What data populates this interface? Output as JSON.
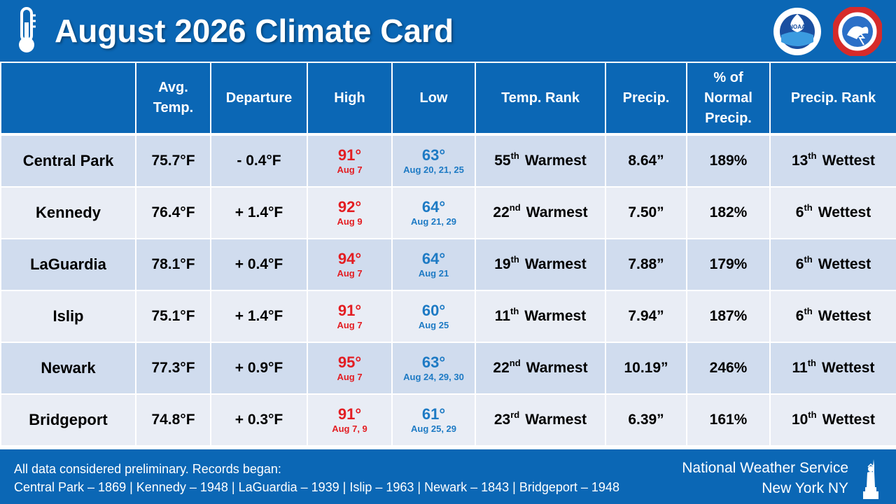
{
  "header": {
    "title": "August 2026 Climate Card",
    "logos": [
      "thermometer-icon",
      "noaa-logo",
      "nws-logo"
    ],
    "noaa_label": "NOAA",
    "nws_ring_text": "NATIONAL WEATHER SERVICE"
  },
  "table": {
    "columns": [
      "",
      "Avg. Temp.",
      "Departure",
      "High",
      "Low",
      "Temp. Rank",
      "Precip.",
      "% of Normal Precip.",
      "Precip. Rank"
    ],
    "rows": [
      {
        "station": "Central Park",
        "avg": "75.7°F",
        "dep": "- 0.4°F",
        "high": "91°",
        "high_date": "Aug 7",
        "low": "63°",
        "low_date": "Aug 20, 21, 25",
        "trank_num": "55",
        "trank_sup": "th",
        "trank_word": "Warmest",
        "precip": "8.64”",
        "pct": "189%",
        "prank_num": "13",
        "prank_sup": "th",
        "prank_word": "Wettest"
      },
      {
        "station": "Kennedy",
        "avg": "76.4°F",
        "dep": "+ 1.4°F",
        "high": "92°",
        "high_date": "Aug 9",
        "low": "64°",
        "low_date": "Aug 21, 29",
        "trank_num": "22",
        "trank_sup": "nd",
        "trank_word": "Warmest",
        "precip": "7.50”",
        "pct": "182%",
        "prank_num": "6",
        "prank_sup": "th",
        "prank_word": "Wettest"
      },
      {
        "station": "LaGuardia",
        "avg": "78.1°F",
        "dep": "+ 0.4°F",
        "high": "94°",
        "high_date": "Aug 7",
        "low": "64°",
        "low_date": "Aug 21",
        "trank_num": "19",
        "trank_sup": "th",
        "trank_word": "Warmest",
        "precip": "7.88”",
        "pct": "179%",
        "prank_num": "6",
        "prank_sup": "th",
        "prank_word": "Wettest"
      },
      {
        "station": "Islip",
        "avg": "75.1°F",
        "dep": "+ 1.4°F",
        "high": "91°",
        "high_date": "Aug 7",
        "low": "60°",
        "low_date": "Aug 25",
        "trank_num": "11",
        "trank_sup": "th",
        "trank_word": "Warmest",
        "precip": "7.94”",
        "pct": "187%",
        "prank_num": "6",
        "prank_sup": "th",
        "prank_word": "Wettest"
      },
      {
        "station": "Newark",
        "avg": "77.3°F",
        "dep": "+ 0.9°F",
        "high": "95°",
        "high_date": "Aug 7",
        "low": "63°",
        "low_date": "Aug 24, 29, 30",
        "trank_num": "22",
        "trank_sup": "nd",
        "trank_word": "Warmest",
        "precip": "10.19”",
        "pct": "246%",
        "prank_num": "11",
        "prank_sup": "th",
        "prank_word": "Wettest"
      },
      {
        "station": "Bridgeport",
        "avg": "74.8°F",
        "dep": "+ 0.3°F",
        "high": "91°",
        "high_date": "Aug 7, 9",
        "low": "61°",
        "low_date": "Aug 25, 29",
        "trank_num": "23",
        "trank_sup": "rd",
        "trank_word": "Warmest",
        "precip": "6.39”",
        "pct": "161%",
        "prank_num": "10",
        "prank_sup": "th",
        "prank_word": "Wettest"
      }
    ]
  },
  "footer": {
    "note_line1": "All data considered preliminary. Records began:",
    "note_line2": "Central Park – 1869  |  Kennedy – 1948  |  LaGuardia – 1939  |  Islip – 1963  |  Newark – 1843  |  Bridgeport – 1948",
    "office_line1": "National Weather Service",
    "office_line2": "New York NY"
  },
  "colors": {
    "brand_blue": "#0b67b5",
    "row_dark": "#d0dcee",
    "row_light": "#e9edf5",
    "high_red": "#e31d22",
    "low_blue": "#1d7ac4"
  }
}
